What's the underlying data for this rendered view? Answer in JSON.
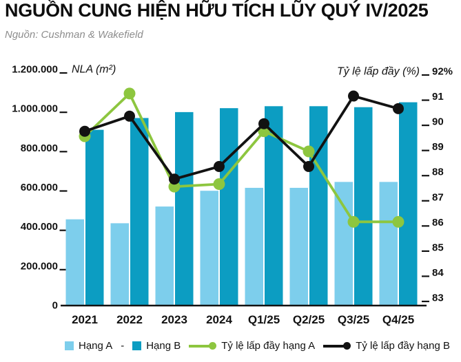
{
  "header": {
    "title": "NGUỒN CUNG HIỆN HỮU TÍCH LŨY QUÝ IV/2025",
    "source": "Nguồn: Cushman & Wakefield"
  },
  "chart_data": {
    "type": "combo-bar-line",
    "title": "NGUỒN CUNG HIỆN HỮU TÍCH LŨY QUÝ IV/2025",
    "categories": [
      "2021",
      "2022",
      "2023",
      "2024",
      "Q1/25",
      "Q2/25",
      "Q3/25",
      "Q4/25"
    ],
    "series": [
      {
        "name": "Hạng A",
        "chart": "bar",
        "axis": "left",
        "color": "#7DCEEC",
        "values": [
          435000,
          415000,
          500000,
          580000,
          595000,
          595000,
          625000,
          625000
        ]
      },
      {
        "name": "Hạng B",
        "chart": "bar",
        "axis": "left",
        "color": "#0C9DC2",
        "values": [
          890000,
          950000,
          980000,
          1000000,
          1010000,
          1010000,
          1005000,
          1030000
        ]
      },
      {
        "name": "Tỷ lệ lấp đầy hạng A",
        "chart": "line",
        "axis": "right",
        "color": "#8DC63F",
        "values": [
          89.4,
          91.1,
          87.4,
          87.5,
          89.6,
          88.8,
          86.0,
          86.0
        ]
      },
      {
        "name": "Tỷ lệ lấp đầy hạng B",
        "chart": "line",
        "axis": "right",
        "color": "#121212",
        "values": [
          89.6,
          90.2,
          87.7,
          88.2,
          89.9,
          88.2,
          91.0,
          90.5
        ]
      }
    ],
    "left_axis": {
      "title": "NLA (m²)",
      "min": 0,
      "max": 1200000,
      "step": 200000,
      "tick_labels": [
        "0",
        "200.000",
        "400.000",
        "600.000",
        "800.000",
        "1.000.000",
        "1.200.000"
      ]
    },
    "right_axis": {
      "title": "Tỷ lệ lấp đầy (%)",
      "min": 83,
      "max": 92,
      "step": 1,
      "tick_labels": [
        "83",
        "84",
        "85",
        "86",
        "87",
        "88",
        "89",
        "90",
        "91",
        "92%"
      ]
    },
    "grid": false,
    "legend_position": "bottom"
  },
  "legend": {
    "separator": "-",
    "items": [
      {
        "label": "Hạng A",
        "swatch": "square",
        "color": "#7DCEEC"
      },
      {
        "label": "Hạng B",
        "swatch": "square",
        "color": "#0C9DC2"
      },
      {
        "label": "Tỷ lệ lấp đầy hạng A",
        "swatch": "line-dot",
        "color": "#8DC63F"
      },
      {
        "label": "Tỷ lệ lấp đầy hạng B",
        "swatch": "line-dot",
        "color": "#121212"
      }
    ]
  }
}
